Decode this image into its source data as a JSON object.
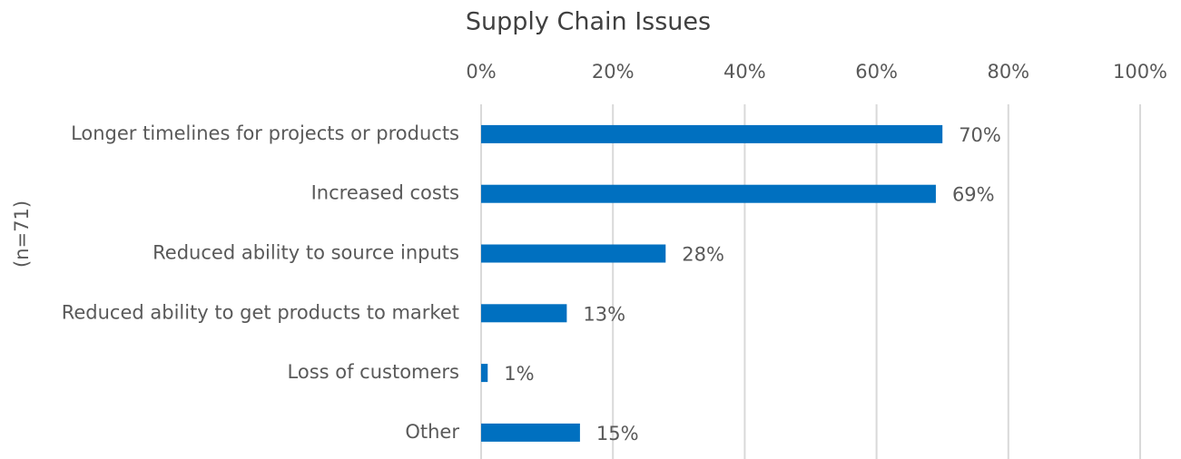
{
  "chart_data": {
    "type": "hbar",
    "title": "Supply Chain Issues",
    "ylabel": "(n=71)",
    "categories": [
      "Longer timelines for projects or products",
      "Increased costs",
      "Reduced ability to source inputs",
      "Reduced ability to get products to market",
      "Loss of customers",
      "Other"
    ],
    "values": [
      70,
      69,
      28,
      13,
      1,
      15
    ],
    "value_labels": [
      "70%",
      "69%",
      "28%",
      "13%",
      "1%",
      "15%"
    ],
    "color": "#0070c0",
    "xlim": [
      0,
      100
    ],
    "xticks": [
      {
        "value": 0,
        "label": "0%"
      },
      {
        "value": 20,
        "label": "20%"
      },
      {
        "value": 40,
        "label": "40%"
      },
      {
        "value": 60,
        "label": "60%"
      },
      {
        "value": 80,
        "label": "80%"
      },
      {
        "value": 100,
        "label": "100%"
      }
    ],
    "grid": true
  }
}
